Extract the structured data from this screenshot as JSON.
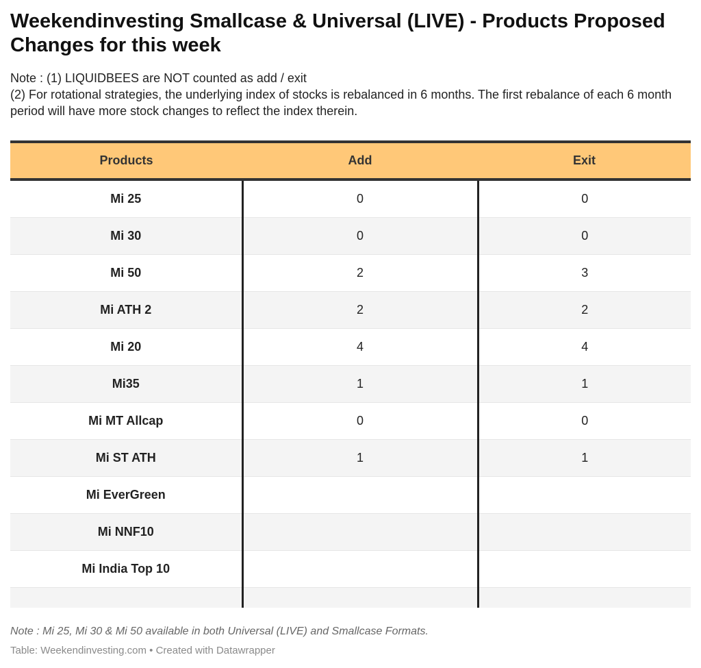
{
  "header": {
    "title": "Weekendinvesting Smallcase & Universal (LIVE) - Products Proposed Changes for this week",
    "note_line1": "Note : (1) LIQUIDBEES are NOT counted as add / exit",
    "note_line2": "(2) For rotational strategies, the underlying index of stocks is rebalanced in 6 months. The first rebalance of each 6 month period will have more stock changes to reflect the index therein."
  },
  "chart_data": {
    "type": "table",
    "columns": [
      "Products",
      "Add",
      "Exit"
    ],
    "rows": [
      {
        "product": "Mi 25",
        "add": "0",
        "exit": "0"
      },
      {
        "product": "Mi 30",
        "add": "0",
        "exit": "0"
      },
      {
        "product": "Mi 50",
        "add": "2",
        "exit": "3"
      },
      {
        "product": "Mi ATH 2",
        "add": "2",
        "exit": "2"
      },
      {
        "product": "Mi 20",
        "add": "4",
        "exit": "4"
      },
      {
        "product": "Mi35",
        "add": "1",
        "exit": "1"
      },
      {
        "product": "Mi MT Allcap",
        "add": "0",
        "exit": "0"
      },
      {
        "product": "Mi ST ATH",
        "add": "1",
        "exit": "1"
      },
      {
        "product": "Mi EverGreen",
        "add": "",
        "exit": ""
      },
      {
        "product": "Mi NNF10",
        "add": "",
        "exit": ""
      },
      {
        "product": "Mi India Top 10",
        "add": "",
        "exit": ""
      }
    ],
    "header_color": "#ffc878"
  },
  "footer": {
    "note": "Note : Mi 25, Mi 30 & Mi 50 available in both Universal (LIVE) and Smallcase Formats.",
    "source": "Table: Weekendinvesting.com • Created with Datawrapper"
  }
}
